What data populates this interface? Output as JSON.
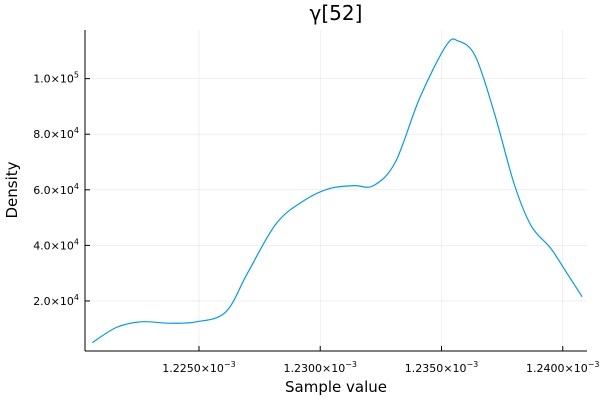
{
  "chart_data": {
    "type": "line",
    "title": "γ[52]",
    "xlabel": "Sample value",
    "ylabel": "Density",
    "xlim": [
      0.0012203,
      0.001241
    ],
    "ylim": [
      2000,
      117500
    ],
    "grid": true,
    "legend": "none",
    "x_ticks": [
      {
        "value": 0.001225,
        "mantissa": "1.2250×10",
        "exponent": "−3"
      },
      {
        "value": 0.00123,
        "mantissa": "1.2300×10",
        "exponent": "−3"
      },
      {
        "value": 0.001235,
        "mantissa": "1.2350×10",
        "exponent": "−3"
      },
      {
        "value": 0.00124,
        "mantissa": "1.2400×10",
        "exponent": "−3"
      }
    ],
    "y_ticks": [
      {
        "value": 20000,
        "mantissa": "2.0×10",
        "exponent": "4"
      },
      {
        "value": 40000,
        "mantissa": "4.0×10",
        "exponent": "4"
      },
      {
        "value": 60000,
        "mantissa": "6.0×10",
        "exponent": "4"
      },
      {
        "value": 80000,
        "mantissa": "8.0×10",
        "exponent": "4"
      },
      {
        "value": 100000,
        "mantissa": "1.0×10",
        "exponent": "5"
      }
    ],
    "series": [
      {
        "color": "#009af9",
        "x": [
          0.0012206,
          0.0012216,
          0.0012226,
          0.0012238,
          0.0012249,
          0.0012261,
          0.001227,
          0.0012282,
          0.0012294,
          0.0012304,
          0.0012314,
          0.0012322,
          0.0012331,
          0.0012341,
          0.0012352,
          0.0012357,
          0.0012364,
          0.0012372,
          0.001238,
          0.0012387,
          0.0012395,
          0.0012401,
          0.0012408
        ],
        "y": [
          5000,
          10500,
          12500,
          12000,
          12500,
          16000,
          30000,
          48000,
          56500,
          60500,
          61500,
          61500,
          70000,
          93000,
          112000,
          113500,
          108000,
          87000,
          62000,
          47000,
          39000,
          31000,
          21500
        ]
      }
    ]
  }
}
